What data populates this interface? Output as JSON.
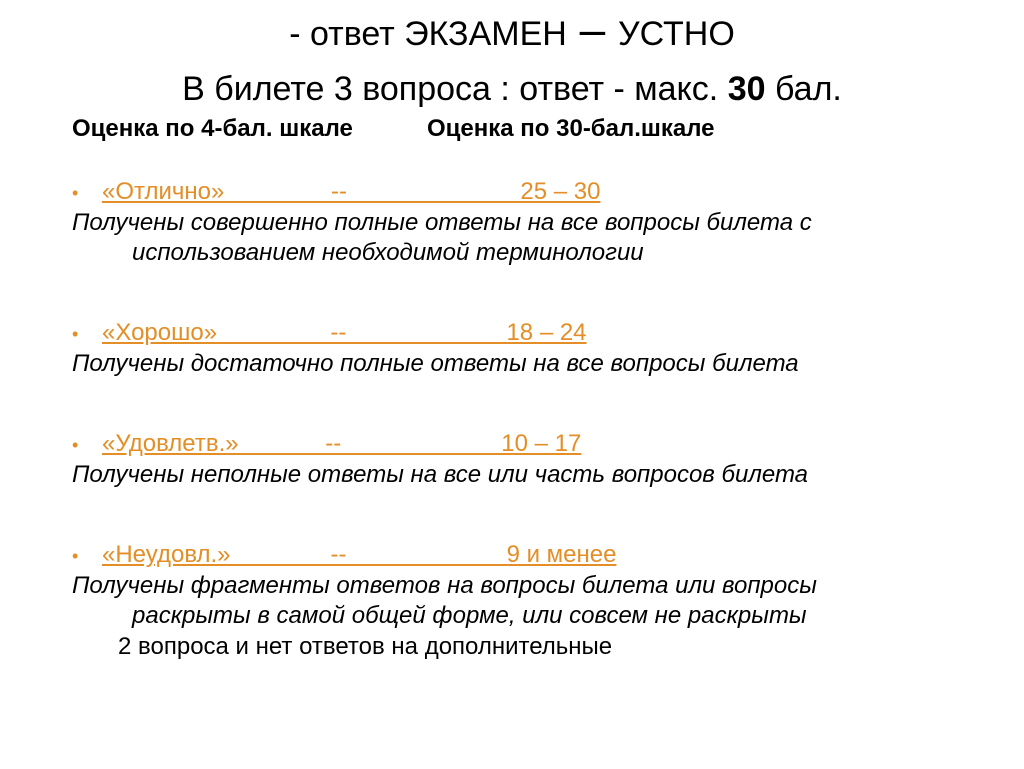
{
  "title": {
    "line1_prefix": "- ответ ",
    "line1_caps1": "ЭКЗАМЕН",
    "line1_dash": " – ",
    "line1_caps2": "УСТНО",
    "line2_a": "В билете 3 вопроса : ответ - макс. ",
    "line2_bold": "30",
    "line2_b": " бал."
  },
  "headers": {
    "scale4": "Оценка по 4-бал. шкале",
    "scale30": "Оценка по 30-бал.шкале"
  },
  "grades": [
    {
      "label": "«Отлично»                --                          25 – 30",
      "desc_line1": "Получены совершенно полные ответы на все вопросы билета с",
      "desc_line2": "использованием необходимой терминологии"
    },
    {
      "label": "«Хорошо»                 --                        18 – 24",
      "desc_line1": "Получены достаточно полные ответы на все вопросы билета",
      "desc_line2": ""
    },
    {
      "label": "«Удовлетв.»             --                        10 – 17",
      "desc_line1": "Получены неполные ответы на все или часть вопросов билета",
      "desc_line2": ""
    },
    {
      "label": "«Неудовл.»               --                        9 и менее",
      "desc_line1": "Получены фрагменты ответов на вопросы билета или вопросы",
      "desc_line2": "раскрыты в самой общей форме, или совсем не раскрыты"
    }
  ],
  "note": "2 вопроса и нет ответов на дополнительные",
  "colors": {
    "accent": "#e38e27",
    "text": "#000000",
    "background": "#ffffff"
  }
}
